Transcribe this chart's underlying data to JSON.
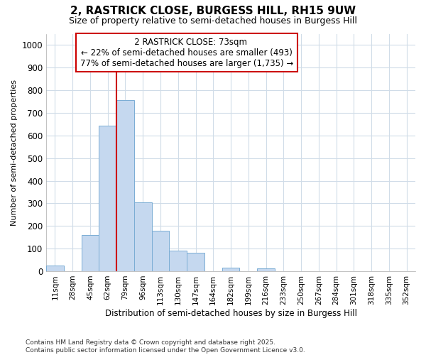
{
  "title_line1": "2, RASTRICK CLOSE, BURGESS HILL, RH15 9UW",
  "title_line2": "Size of property relative to semi-detached houses in Burgess Hill",
  "xlabel": "Distribution of semi-detached houses by size in Burgess Hill",
  "ylabel": "Number of semi-detached properties",
  "footnote": "Contains HM Land Registry data © Crown copyright and database right 2025.\nContains public sector information licensed under the Open Government Licence v3.0.",
  "bin_labels": [
    "11sqm",
    "28sqm",
    "45sqm",
    "62sqm",
    "79sqm",
    "96sqm",
    "113sqm",
    "130sqm",
    "147sqm",
    "164sqm",
    "182sqm",
    "199sqm",
    "216sqm",
    "233sqm",
    "250sqm",
    "267sqm",
    "284sqm",
    "301sqm",
    "318sqm",
    "335sqm",
    "352sqm"
  ],
  "bar_values": [
    25,
    0,
    160,
    645,
    755,
    305,
    180,
    90,
    80,
    0,
    15,
    0,
    12,
    0,
    0,
    0,
    0,
    0,
    0,
    0,
    0
  ],
  "bar_color": "#C5D8EF",
  "bar_edge_color": "#7AADD4",
  "vline_x_index": 4,
  "vline_color": "#CC0000",
  "annotation_title": "2 RASTRICK CLOSE: 73sqm",
  "annotation_line2": "← 22% of semi-detached houses are smaller (493)",
  "annotation_line3": "77% of semi-detached houses are larger (1,735) →",
  "annotation_box_color": "#CC0000",
  "ylim": [
    0,
    1050
  ],
  "yticks": [
    0,
    100,
    200,
    300,
    400,
    500,
    600,
    700,
    800,
    900,
    1000
  ],
  "bg_color": "#FFFFFF",
  "plot_bg_color": "#FFFFFF",
  "grid_color": "#D0DCE8"
}
